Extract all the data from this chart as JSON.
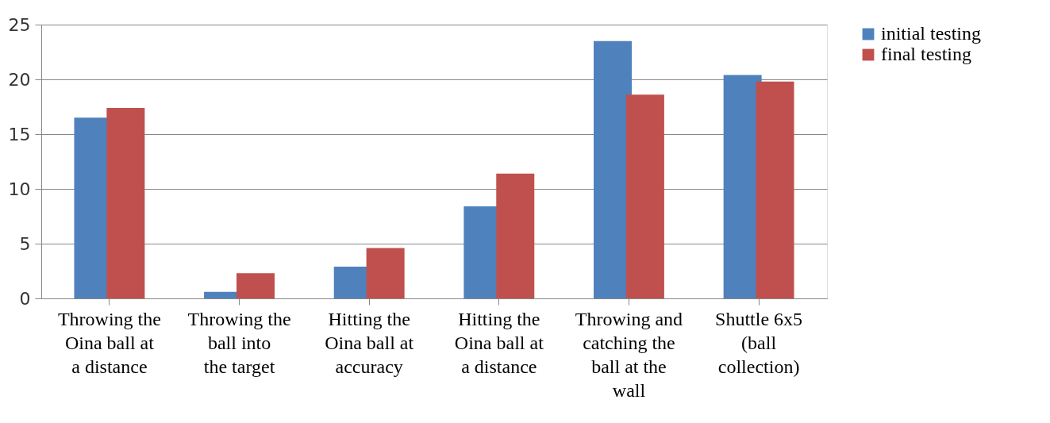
{
  "chart_data": {
    "type": "bar",
    "categories": [
      "Throwing the Oina ball at a distance",
      "Throwing the ball into the target",
      "Hitting the Oina ball at accuracy",
      "Hitting the Oina ball at a distance",
      "Throwing and catching the ball at the wall",
      "Shuttle 6x5 (ball collection)"
    ],
    "series": [
      {
        "name": "initial testing",
        "color": "#4f81bd",
        "values": [
          16.5,
          0.6,
          2.9,
          8.4,
          23.5,
          20.4
        ]
      },
      {
        "name": "final testing",
        "color": "#c0504d",
        "values": [
          17.4,
          2.3,
          4.6,
          11.4,
          18.6,
          19.8
        ]
      }
    ],
    "ylim": [
      0,
      25
    ],
    "yticks": [
      0,
      5,
      10,
      15,
      20,
      25
    ],
    "grid": "y",
    "legend": "right"
  }
}
